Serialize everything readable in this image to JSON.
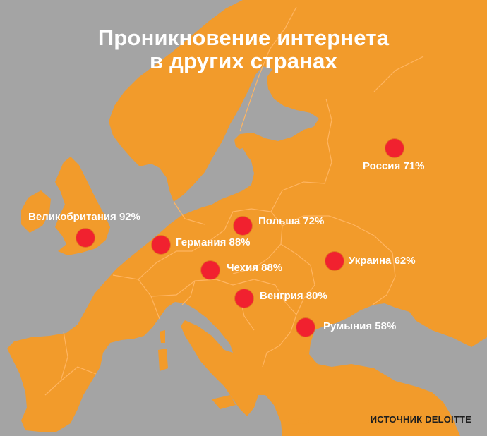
{
  "title": {
    "line1": "Проникновение интернета",
    "line2": "в других странах"
  },
  "countries": [
    {
      "id": "russia",
      "name": "Россия",
      "value": "71%"
    },
    {
      "id": "uk",
      "name": "Великобритания",
      "value": "92%"
    },
    {
      "id": "poland",
      "name": "Польша",
      "value": "72%"
    },
    {
      "id": "germany",
      "name": "Германия",
      "value": "88%"
    },
    {
      "id": "ukraine",
      "name": "Украина",
      "value": "62%"
    },
    {
      "id": "czech",
      "name": "Чехия",
      "value": "88%"
    },
    {
      "id": "hungary",
      "name": "Венгрия",
      "value": "80%"
    },
    {
      "id": "romania",
      "name": "Румыния",
      "value": "58%"
    }
  ],
  "source": "ИСТОЧНИК DELOITTE",
  "colors": {
    "land": "#f29b2b",
    "water": "#a4a4a4",
    "border": "#ffb561",
    "marker": "#f1212f",
    "label": "#ffffff",
    "source_text": "#1e1e1e"
  }
}
